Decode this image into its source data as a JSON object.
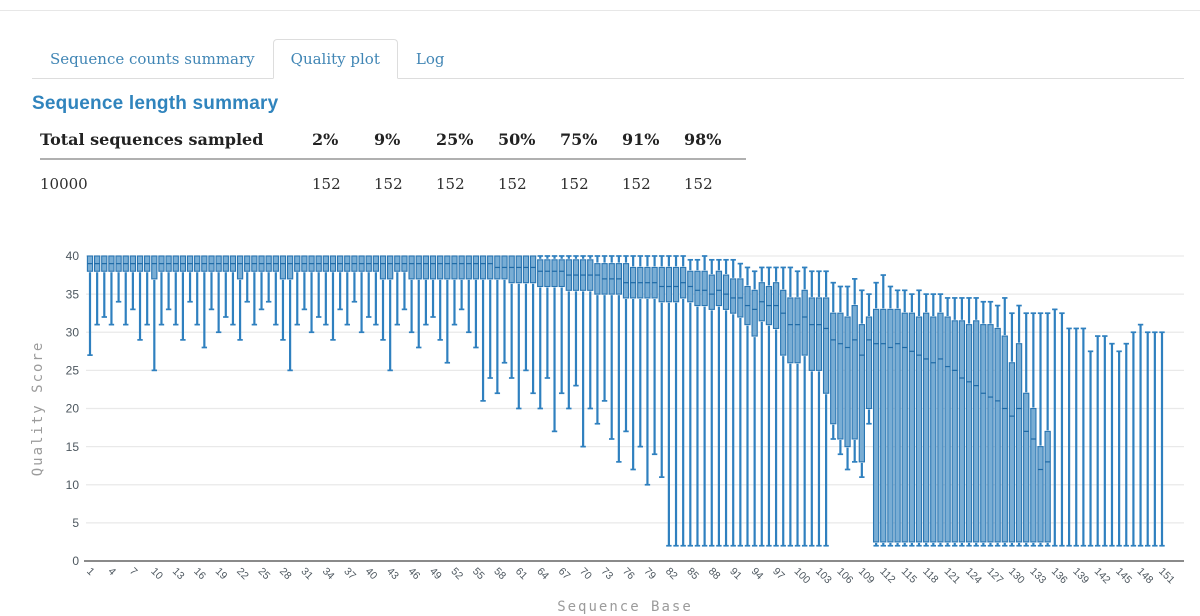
{
  "tabs": [
    {
      "label": "Sequence counts summary",
      "active": false
    },
    {
      "label": "Quality plot",
      "active": true
    },
    {
      "label": "Log",
      "active": false
    }
  ],
  "section": {
    "heading": "Sequence length summary"
  },
  "table": {
    "columns": [
      "Total sequences sampled",
      "2%",
      "9%",
      "25%",
      "50%",
      "75%",
      "91%",
      "98%"
    ],
    "rows": [
      [
        "10000",
        "152",
        "152",
        "152",
        "152",
        "152",
        "152",
        "152"
      ]
    ]
  },
  "chart_data": {
    "type": "boxplot",
    "title": "",
    "xlabel": "Sequence Base",
    "ylabel": "Quality Score",
    "ylim": [
      0,
      40
    ],
    "grid": true,
    "legend": "none",
    "y_ticks": [
      0,
      5,
      10,
      15,
      20,
      25,
      30,
      35,
      40
    ],
    "x_ticks": [
      1,
      4,
      7,
      10,
      13,
      16,
      19,
      22,
      25,
      28,
      31,
      34,
      37,
      40,
      43,
      46,
      49,
      52,
      55,
      58,
      61,
      64,
      67,
      70,
      73,
      76,
      79,
      82,
      85,
      88,
      91,
      94,
      97,
      100,
      103,
      106,
      109,
      112,
      115,
      118,
      121,
      124,
      127,
      130,
      133,
      136,
      139,
      142,
      145,
      148,
      151
    ],
    "colors": {
      "box_fill": "#79add4",
      "box_stroke": "#2875b2",
      "whisker": "#2f80bf",
      "median": "#1f6aa6",
      "grid": "#e9e9e9",
      "axis": "#8a8a8a",
      "tick_label": "#4d575f",
      "axis_label": "#9b9b9b"
    },
    "boxes_format": [
      "low",
      "q1",
      "median",
      "q3",
      "high"
    ],
    "boxes": [
      [
        27,
        38,
        39,
        40,
        40
      ],
      [
        31,
        38,
        39,
        40,
        40
      ],
      [
        32,
        38,
        39,
        40,
        40
      ],
      [
        31,
        38,
        39,
        40,
        40
      ],
      [
        34,
        38,
        39,
        40,
        40
      ],
      [
        31,
        38,
        39,
        40,
        40
      ],
      [
        33,
        38,
        39,
        40,
        40
      ],
      [
        29,
        38,
        39,
        40,
        40
      ],
      [
        31,
        38,
        39,
        40,
        40
      ],
      [
        25,
        37,
        39,
        40,
        40
      ],
      [
        31,
        38,
        39,
        40,
        40
      ],
      [
        33,
        38,
        39,
        40,
        40
      ],
      [
        31,
        38,
        39,
        40,
        40
      ],
      [
        29,
        38,
        39,
        40,
        40
      ],
      [
        34,
        38,
        39,
        40,
        40
      ],
      [
        31,
        38,
        39,
        40,
        40
      ],
      [
        28,
        38,
        39,
        40,
        40
      ],
      [
        33,
        38,
        39,
        40,
        40
      ],
      [
        30,
        38,
        39,
        40,
        40
      ],
      [
        32,
        38,
        39,
        40,
        40
      ],
      [
        31,
        38,
        39,
        40,
        40
      ],
      [
        29,
        37,
        39,
        40,
        40
      ],
      [
        34,
        38,
        39,
        40,
        40
      ],
      [
        31,
        38,
        39,
        40,
        40
      ],
      [
        33,
        38,
        39,
        40,
        40
      ],
      [
        34,
        38,
        39,
        40,
        40
      ],
      [
        31,
        38,
        39,
        40,
        40
      ],
      [
        29,
        37,
        39,
        40,
        40
      ],
      [
        25,
        37,
        39,
        40,
        40
      ],
      [
        31,
        38,
        39,
        40,
        40
      ],
      [
        33,
        38,
        39,
        40,
        40
      ],
      [
        30,
        38,
        39,
        40,
        40
      ],
      [
        32,
        38,
        39,
        40,
        40
      ],
      [
        31,
        38,
        39,
        40,
        40
      ],
      [
        29,
        38,
        39,
        40,
        40
      ],
      [
        33,
        38,
        39,
        40,
        40
      ],
      [
        31,
        38,
        39,
        40,
        40
      ],
      [
        34,
        38,
        39,
        40,
        40
      ],
      [
        30,
        38,
        39,
        40,
        40
      ],
      [
        32,
        38,
        39,
        40,
        40
      ],
      [
        31,
        38,
        39,
        40,
        40
      ],
      [
        29,
        37,
        39,
        40,
        40
      ],
      [
        25,
        37,
        39,
        40,
        40
      ],
      [
        31,
        38,
        39,
        40,
        40
      ],
      [
        33,
        38,
        39,
        40,
        40
      ],
      [
        30,
        37,
        39,
        40,
        40
      ],
      [
        28,
        37,
        39,
        40,
        40
      ],
      [
        31,
        37,
        39,
        40,
        40
      ],
      [
        32,
        37,
        39,
        40,
        40
      ],
      [
        29,
        37,
        39,
        40,
        40
      ],
      [
        26,
        37,
        39,
        40,
        40
      ],
      [
        31,
        37,
        39,
        40,
        40
      ],
      [
        33,
        37,
        39,
        40,
        40
      ],
      [
        30,
        37,
        39,
        40,
        40
      ],
      [
        28,
        37,
        39,
        40,
        40
      ],
      [
        21,
        37,
        39,
        40,
        40
      ],
      [
        24,
        37,
        39,
        40,
        40
      ],
      [
        22,
        37,
        38.5,
        40,
        40
      ],
      [
        26,
        37,
        38.5,
        40,
        40
      ],
      [
        24,
        36.5,
        38.5,
        40,
        40
      ],
      [
        20,
        36.5,
        38.5,
        40,
        40
      ],
      [
        25,
        36.5,
        38.5,
        40,
        40
      ],
      [
        22,
        36.5,
        38.5,
        40,
        40
      ],
      [
        20,
        36,
        38,
        39.5,
        40
      ],
      [
        24,
        36,
        38,
        39.5,
        40
      ],
      [
        17,
        36,
        38,
        39.5,
        40
      ],
      [
        22,
        36,
        38,
        39.5,
        40
      ],
      [
        20,
        35.5,
        37.5,
        39.5,
        40
      ],
      [
        23,
        35.5,
        37.5,
        39.5,
        40
      ],
      [
        15,
        35.5,
        37.5,
        39.5,
        40
      ],
      [
        20,
        35.5,
        37.5,
        39.5,
        40
      ],
      [
        18,
        35,
        37.5,
        39,
        40
      ],
      [
        21,
        35,
        37,
        39,
        40
      ],
      [
        16,
        35,
        37,
        39,
        40
      ],
      [
        13,
        35,
        37,
        39,
        40
      ],
      [
        17,
        34.5,
        36.5,
        39,
        40
      ],
      [
        12,
        34.5,
        36.5,
        38.5,
        40
      ],
      [
        15,
        34.5,
        36.5,
        38.5,
        40
      ],
      [
        10,
        34.5,
        36.5,
        38.5,
        40
      ],
      [
        14,
        34.5,
        36.5,
        38.5,
        40
      ],
      [
        11,
        34,
        36,
        38.5,
        40
      ],
      [
        2,
        34,
        36,
        38.5,
        40
      ],
      [
        2,
        34,
        36,
        38.5,
        40
      ],
      [
        2,
        34.5,
        36.5,
        38.5,
        40
      ],
      [
        2,
        34,
        36,
        38,
        39.5
      ],
      [
        2,
        33.5,
        35.5,
        38,
        39.5
      ],
      [
        2,
        33.5,
        35.5,
        38,
        40
      ],
      [
        2,
        33,
        35,
        37.5,
        39.5
      ],
      [
        2,
        33.5,
        35.5,
        38,
        39.5
      ],
      [
        2,
        33,
        35,
        37.5,
        39.5
      ],
      [
        2,
        32.5,
        34.5,
        37,
        39.5
      ],
      [
        2,
        32,
        34.5,
        37,
        39
      ],
      [
        2,
        31,
        33.5,
        36,
        38.5
      ],
      [
        2,
        29.5,
        33,
        35.5,
        38
      ],
      [
        2,
        31.5,
        34,
        36.5,
        38.5
      ],
      [
        2,
        31,
        33.5,
        36,
        38.5
      ],
      [
        2,
        30.5,
        33.5,
        36.5,
        38.5
      ],
      [
        2,
        27,
        32.5,
        35.5,
        38.5
      ],
      [
        2,
        26,
        31,
        34.5,
        38.5
      ],
      [
        2,
        26,
        31,
        34.5,
        38
      ],
      [
        2,
        27,
        32,
        35.5,
        38.5
      ],
      [
        2,
        25,
        31,
        34.5,
        38
      ],
      [
        2,
        25,
        31,
        34.5,
        38
      ],
      [
        2,
        22,
        30.5,
        34.5,
        38
      ],
      [
        16,
        18,
        29,
        32.5,
        36.5
      ],
      [
        14,
        16,
        28.5,
        32.5,
        36
      ],
      [
        12,
        15,
        28,
        32,
        36
      ],
      [
        13,
        16,
        29,
        33.5,
        37
      ],
      [
        11,
        13,
        27,
        31,
        35.5
      ],
      [
        18,
        20,
        29,
        32,
        35
      ],
      [
        2,
        2.5,
        28.5,
        33,
        36.5
      ],
      [
        2,
        2.5,
        28.5,
        33,
        37.5
      ],
      [
        2,
        2.5,
        28,
        33,
        36
      ],
      [
        2,
        2.5,
        28.5,
        33,
        35.5
      ],
      [
        2,
        2.5,
        28,
        32.5,
        35.5
      ],
      [
        2,
        2.5,
        27.5,
        32.5,
        35
      ],
      [
        2,
        2.5,
        27,
        32,
        35.5
      ],
      [
        2,
        2.5,
        26.5,
        32.5,
        35
      ],
      [
        2,
        2.5,
        26,
        32,
        35
      ],
      [
        2,
        2.5,
        26.5,
        32.5,
        35
      ],
      [
        2,
        2.5,
        25.5,
        32,
        34.5
      ],
      [
        2,
        2.5,
        25,
        31.5,
        34.5
      ],
      [
        2,
        2.5,
        24,
        31.5,
        34.5
      ],
      [
        2,
        2.5,
        23.5,
        31,
        34.5
      ],
      [
        2,
        2.5,
        23,
        31.5,
        34.5
      ],
      [
        2,
        2.5,
        22,
        31,
        34
      ],
      [
        2,
        2.5,
        21.5,
        31,
        34
      ],
      [
        2,
        2.5,
        21,
        30.5,
        33.5
      ],
      [
        2,
        2.5,
        20,
        29.5,
        34.5
      ],
      [
        2,
        2.5,
        19,
        26,
        32.5
      ],
      [
        2,
        2.5,
        20,
        28.5,
        33.5
      ],
      [
        2,
        2.5,
        17,
        22,
        32.5
      ],
      [
        2,
        2.5,
        16,
        20,
        32.5
      ],
      [
        2,
        2.5,
        12,
        15,
        32.5
      ],
      [
        2,
        2.5,
        13,
        17,
        32.5
      ],
      [
        2,
        null,
        null,
        null,
        33
      ],
      [
        2,
        null,
        null,
        null,
        32.5
      ],
      [
        2,
        null,
        null,
        null,
        30.5
      ],
      [
        2,
        null,
        null,
        null,
        30.5
      ],
      [
        2,
        null,
        null,
        null,
        30.5
      ],
      [
        2,
        null,
        null,
        null,
        27.5
      ],
      [
        2,
        null,
        null,
        null,
        29.5
      ],
      [
        2,
        null,
        null,
        null,
        29.5
      ],
      [
        2,
        null,
        null,
        null,
        28.5
      ],
      [
        2,
        null,
        null,
        null,
        27.5
      ],
      [
        2,
        null,
        null,
        null,
        28.5
      ],
      [
        2,
        null,
        null,
        null,
        30
      ],
      [
        2,
        null,
        null,
        null,
        31
      ],
      [
        2,
        null,
        null,
        null,
        30
      ],
      [
        2,
        null,
        null,
        null,
        30
      ],
      [
        2,
        null,
        null,
        null,
        30
      ]
    ]
  }
}
